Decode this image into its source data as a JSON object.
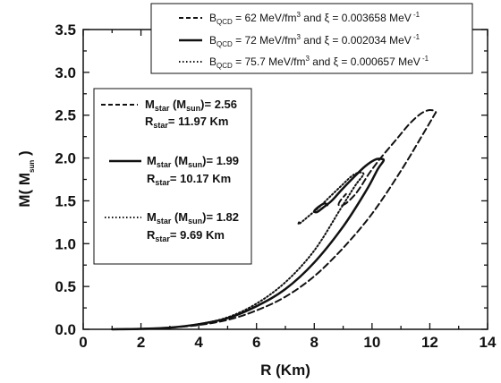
{
  "chart_data": {
    "type": "line",
    "xlabel": "R (Km)",
    "ylabel_main": "M( M",
    "ylabel_sub": "sun",
    "ylabel_close": " )",
    "xlim": [
      0,
      14
    ],
    "ylim": [
      0,
      3.5
    ],
    "x_ticks": [
      "0",
      "2",
      "4",
      "6",
      "8",
      "10",
      "12",
      "14"
    ],
    "y_ticks": [
      "0.0",
      "0.5",
      "1.0",
      "1.5",
      "2.0",
      "2.5",
      "3.0",
      "3.5"
    ],
    "legend_placement": "top-right",
    "series": [
      {
        "dash": "dashed",
        "legend": {
          "b": "B",
          "b_sub": "QCD",
          "b_val": " = 62 MeV/fm",
          "b_sup": "3",
          "xi": "  and  ξ = 0.003658 MeV",
          "xi_sup": " -1"
        },
        "points": [
          [
            1.0,
            0.0
          ],
          [
            2.0,
            0.005
          ],
          [
            3.0,
            0.02
          ],
          [
            4.0,
            0.05
          ],
          [
            5.0,
            0.11
          ],
          [
            6.0,
            0.22
          ],
          [
            7.0,
            0.38
          ],
          [
            8.0,
            0.62
          ],
          [
            9.0,
            0.95
          ],
          [
            10.0,
            1.35
          ],
          [
            11.0,
            1.85
          ],
          [
            11.8,
            2.3
          ],
          [
            12.15,
            2.5
          ],
          [
            12.2,
            2.54
          ],
          [
            12.0,
            2.56
          ],
          [
            11.7,
            2.52
          ],
          [
            11.3,
            2.4
          ],
          [
            10.8,
            2.2
          ],
          [
            10.3,
            2.0
          ],
          [
            9.9,
            1.82
          ],
          [
            9.6,
            1.66
          ],
          [
            9.35,
            1.55
          ],
          [
            9.05,
            1.46
          ],
          [
            8.85,
            1.45
          ],
          [
            8.9,
            1.5
          ],
          [
            9.1,
            1.58
          ]
        ]
      },
      {
        "dash": "solid",
        "legend": {
          "b": "B",
          "b_sub": "QCD",
          "b_val": " = 72 MeV/fm",
          "b_sup": "3",
          "xi": "  and  ξ = 0.002034 MeV",
          "xi_sup": " -1"
        },
        "points": [
          [
            1.0,
            0.0
          ],
          [
            2.0,
            0.005
          ],
          [
            3.0,
            0.02
          ],
          [
            4.0,
            0.06
          ],
          [
            5.0,
            0.13
          ],
          [
            6.0,
            0.27
          ],
          [
            7.0,
            0.47
          ],
          [
            8.0,
            0.78
          ],
          [
            9.0,
            1.2
          ],
          [
            9.8,
            1.62
          ],
          [
            10.2,
            1.87
          ],
          [
            10.4,
            1.97
          ],
          [
            10.3,
            1.99
          ],
          [
            10.1,
            1.98
          ],
          [
            9.75,
            1.9
          ],
          [
            9.35,
            1.77
          ],
          [
            8.95,
            1.63
          ],
          [
            8.6,
            1.5
          ],
          [
            8.3,
            1.42
          ],
          [
            8.1,
            1.37
          ],
          [
            8.0,
            1.38
          ],
          [
            8.15,
            1.43
          ],
          [
            8.35,
            1.47
          ],
          [
            8.45,
            1.45
          ]
        ]
      },
      {
        "dash": "dotted",
        "legend": {
          "b": "B",
          "b_sub": "QCD",
          "b_val": " = 75.7 MeV/fm",
          "b_sup": "3",
          "xi": "  and  ξ = 0.000657 MeV",
          "xi_sup": " -1"
        },
        "points": [
          [
            1.0,
            0.0
          ],
          [
            2.0,
            0.005
          ],
          [
            3.0,
            0.02
          ],
          [
            4.0,
            0.06
          ],
          [
            5.0,
            0.14
          ],
          [
            6.0,
            0.3
          ],
          [
            7.0,
            0.55
          ],
          [
            8.0,
            0.92
          ],
          [
            8.9,
            1.4
          ],
          [
            9.4,
            1.67
          ],
          [
            9.65,
            1.78
          ],
          [
            9.7,
            1.82
          ],
          [
            9.55,
            1.83
          ],
          [
            9.3,
            1.79
          ],
          [
            8.95,
            1.68
          ],
          [
            8.55,
            1.55
          ],
          [
            8.15,
            1.42
          ],
          [
            7.8,
            1.32
          ],
          [
            7.55,
            1.25
          ],
          [
            7.45,
            1.23
          ],
          [
            7.5,
            1.27
          ]
        ]
      }
    ],
    "annotations": [
      {
        "m_label": "M",
        "m_sub": "star",
        "m_mid": " (M",
        "m_sub2": "sun",
        "m_val": ")= 2.56",
        "r_label": "R",
        "r_sub": "star",
        "r_val": "= 11.97  Km"
      },
      {
        "m_label": "M",
        "m_sub": "star",
        "m_mid": " (M",
        "m_sub2": "sun",
        "m_val": ")= 1.99",
        "r_label": "R",
        "r_sub": "star",
        "r_val": "= 10.17  Km"
      },
      {
        "m_label": "M",
        "m_sub": "star",
        "m_mid": " (M",
        "m_sub2": "sun",
        "m_val": ")= 1.82",
        "r_label": "R",
        "r_sub": "star",
        "r_val": "= 9.69  Km"
      }
    ]
  }
}
